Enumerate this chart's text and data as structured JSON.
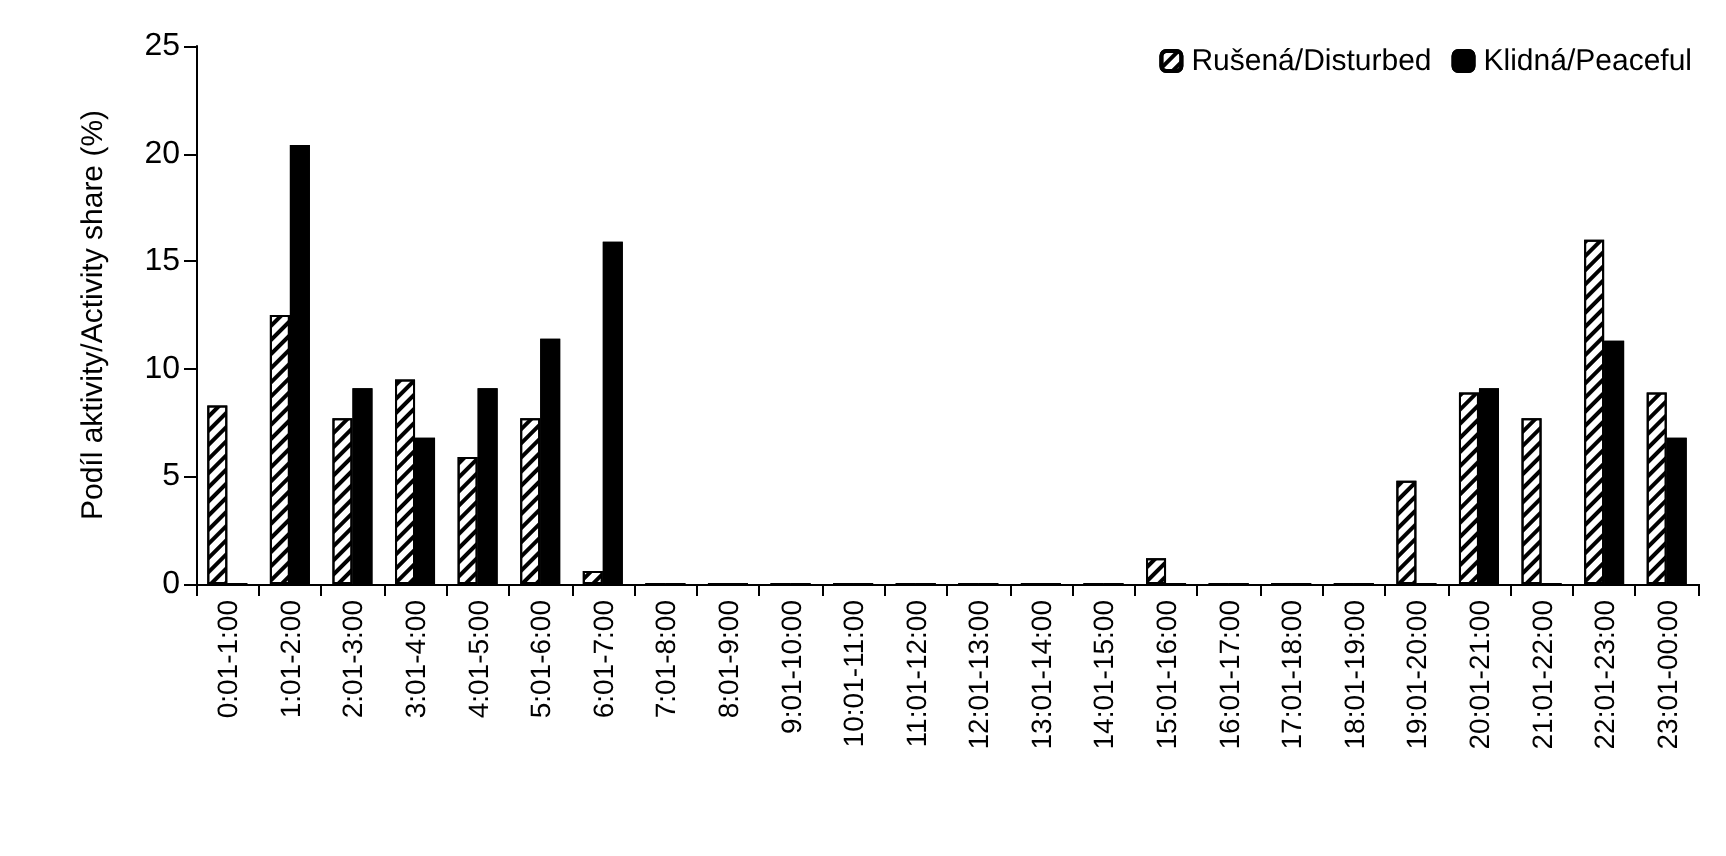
{
  "chart_data": {
    "type": "bar",
    "ylabel": "Podíl aktivity/Activity share (%)",
    "categories": [
      "0:01-1:00",
      "1:01-2:00",
      "2:01-3:00",
      "3:01-4:00",
      "4:01-5:00",
      "5:01-6:00",
      "6:01-7:00",
      "7:01-8:00",
      "8:01-9:00",
      "9:01-10:00",
      "10:01-11:00",
      "11:01-12:00",
      "12:01-13:00",
      "13:01-14:00",
      "14:01-15:00",
      "15:01-16:00",
      "16:01-17:00",
      "17:01-18:00",
      "18:01-19:00",
      "19:01-20:00",
      "20:01-21:00",
      "21:01-22:00",
      "22:01-23:00",
      "23:01-00:00"
    ],
    "series": [
      {
        "name": "Rušená/Disturbed",
        "color": "#ffffff",
        "values": [
          8.3,
          12.5,
          7.7,
          9.5,
          5.9,
          7.7,
          0.6,
          0,
          0,
          0,
          0,
          0,
          0,
          0,
          0,
          1.2,
          0,
          0,
          0,
          4.8,
          8.9,
          7.7,
          16.0,
          8.9
        ]
      },
      {
        "name": "Klidná/Peaceful",
        "color": "#000000",
        "values": [
          0,
          20.4,
          9.1,
          6.8,
          9.1,
          11.4,
          15.9,
          0,
          0,
          0,
          0,
          0,
          0,
          0,
          0,
          0,
          0,
          0,
          0,
          0,
          9.1,
          0,
          11.3,
          6.8
        ]
      }
    ],
    "ylim": [
      0,
      25
    ],
    "yticks": [
      0,
      5,
      10,
      15,
      20,
      25
    ],
    "grid": false,
    "legend": "top right"
  }
}
